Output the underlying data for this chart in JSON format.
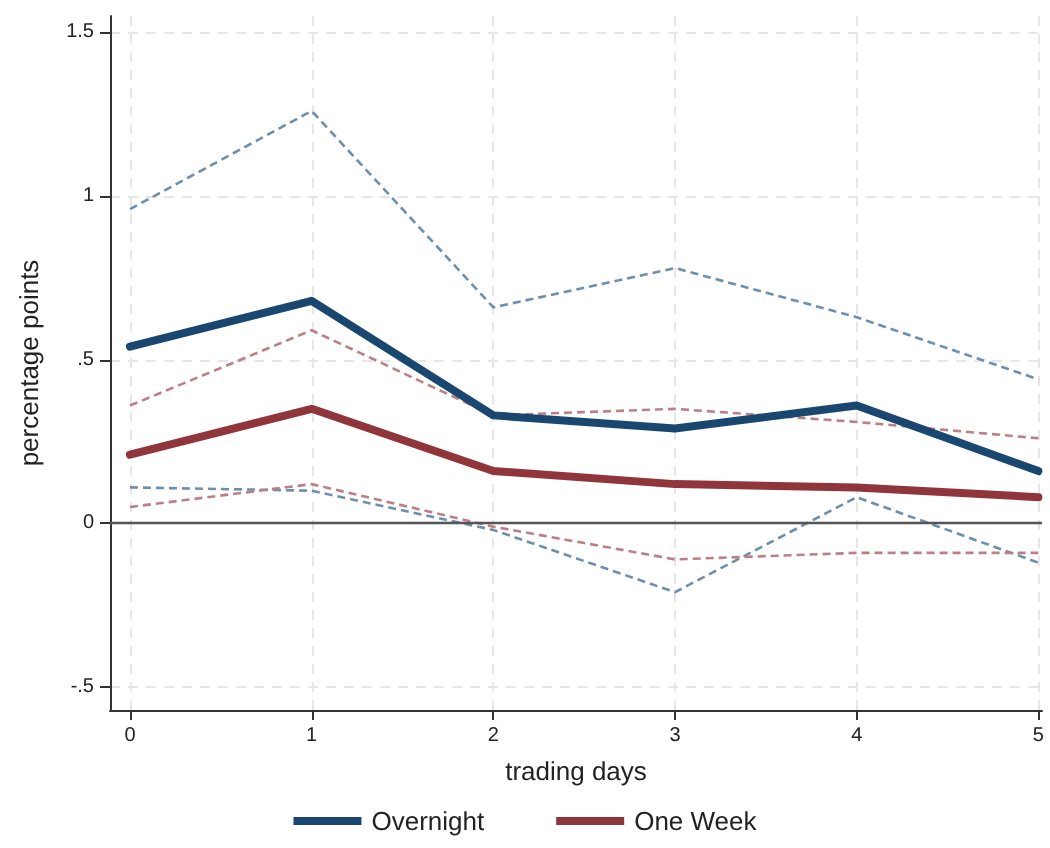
{
  "chart_data": {
    "type": "line",
    "xlabel": "trading days",
    "ylabel": "percentage points",
    "x": [
      0,
      1,
      2,
      3,
      4,
      5
    ],
    "series": [
      {
        "name": "Overnight",
        "color": "#1a476f",
        "values": [
          0.54,
          0.68,
          0.33,
          0.29,
          0.36,
          0.16
        ]
      },
      {
        "name": "One Week",
        "color": "#90353b",
        "values": [
          0.21,
          0.35,
          0.16,
          0.12,
          0.11,
          0.08
        ]
      },
      {
        "color": "#6d8fae",
        "line_style": "dashed",
        "values": [
          0.96,
          1.26,
          0.66,
          0.78,
          0.63,
          0.44
        ]
      },
      {
        "color": "#6d8fae",
        "line_style": "dashed",
        "values": [
          0.11,
          0.1,
          -0.02,
          -0.21,
          0.08,
          -0.12
        ]
      },
      {
        "color": "#bc8084",
        "line_style": "dashed",
        "values": [
          0.36,
          0.59,
          0.33,
          0.35,
          0.31,
          0.26
        ]
      },
      {
        "color": "#bc8084",
        "line_style": "dashed",
        "values": [
          0.05,
          0.12,
          -0.01,
          -0.11,
          -0.09,
          -0.09
        ]
      }
    ],
    "xlim": [
      -0.11,
      5.02
    ],
    "ylim": [
      -0.57,
      1.55
    ],
    "xticks": [
      0,
      1,
      2,
      3,
      4,
      5
    ],
    "yticks": [
      {
        "value": -0.5,
        "label": "-.5"
      },
      0,
      {
        "value": 0.5,
        "label": ".5"
      },
      1,
      1.5
    ],
    "ref_lines": [
      {
        "axis": "y",
        "value": 0,
        "color": "#555555"
      }
    ],
    "grid": true,
    "legend": "bottom",
    "marker": "none",
    "line_style": "solid"
  }
}
